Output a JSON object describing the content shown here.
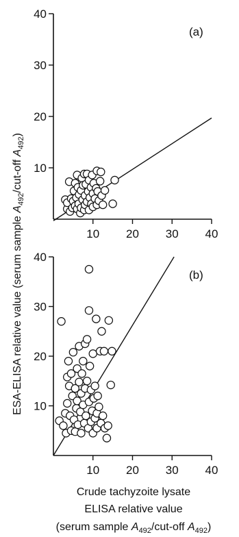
{
  "figure": {
    "ylabel_main": "ESA-ELISA relative value (serum sample ",
    "ylabel_var": "A",
    "ylabel_sub": "492",
    "ylabel_mid": "/cut-off ",
    "ylabel_var2": "A",
    "ylabel_sub2": "492",
    "ylabel_end": ")",
    "xlabel_line1": "Crude tachyzoite lysate",
    "xlabel_line2": "ELISA relative value",
    "xlabel_line3_pre": "(serum sample ",
    "xlabel_line3_var": "A",
    "xlabel_line3_sub": "492",
    "xlabel_line3_mid": "/cut-off ",
    "xlabel_line3_var2": "A",
    "xlabel_line3_sub2": "492",
    "xlabel_line3_end": ")"
  },
  "chart_data": [
    {
      "type": "scatter",
      "panel_label": "(a)",
      "xlim": [
        0,
        40
      ],
      "ylim": [
        0,
        40
      ],
      "xticks": [
        10,
        20,
        30,
        40
      ],
      "yticks": [
        10,
        20,
        30,
        40
      ],
      "xtick_labels": [
        "10",
        "20",
        "30",
        "40"
      ],
      "ytick_labels": [
        "10",
        "20",
        "30",
        "40"
      ],
      "line": {
        "x": [
          0,
          40
        ],
        "y": [
          -0.3,
          19.7
        ]
      },
      "points": [
        [
          3.0,
          3.8
        ],
        [
          3.5,
          2.0
        ],
        [
          3.5,
          3.2
        ],
        [
          4.0,
          7.3
        ],
        [
          4.2,
          1.5
        ],
        [
          4.5,
          4.0
        ],
        [
          4.8,
          2.2
        ],
        [
          5.0,
          3.5
        ],
        [
          5.2,
          5.5
        ],
        [
          5.5,
          2.6
        ],
        [
          5.5,
          7.0
        ],
        [
          5.8,
          4.2
        ],
        [
          6.0,
          8.6
        ],
        [
          6.0,
          2.0
        ],
        [
          6.2,
          6.2
        ],
        [
          6.4,
          3.0
        ],
        [
          6.5,
          4.8
        ],
        [
          6.8,
          1.2
        ],
        [
          7.0,
          5.6
        ],
        [
          7.0,
          2.2
        ],
        [
          7.2,
          8.0
        ],
        [
          7.4,
          3.8
        ],
        [
          7.5,
          6.6
        ],
        [
          7.8,
          1.8
        ],
        [
          7.8,
          8.8
        ],
        [
          8.0,
          4.6
        ],
        [
          8.0,
          2.8
        ],
        [
          8.2,
          6.8
        ],
        [
          8.5,
          8.8
        ],
        [
          8.5,
          3.4
        ],
        [
          8.8,
          5.4
        ],
        [
          9.0,
          7.6
        ],
        [
          9.0,
          1.8
        ],
        [
          9.2,
          4.2
        ],
        [
          9.5,
          6.2
        ],
        [
          9.6,
          3.0
        ],
        [
          9.8,
          8.6
        ],
        [
          10.0,
          5.0
        ],
        [
          10.0,
          2.4
        ],
        [
          10.2,
          7.0
        ],
        [
          10.5,
          4.0
        ],
        [
          10.8,
          6.0
        ],
        [
          11.0,
          9.4
        ],
        [
          11.0,
          2.8
        ],
        [
          11.2,
          5.4
        ],
        [
          11.5,
          3.6
        ],
        [
          11.8,
          7.4
        ],
        [
          12.0,
          9.2
        ],
        [
          12.2,
          4.6
        ],
        [
          12.5,
          2.8
        ],
        [
          13.0,
          5.6
        ],
        [
          15.0,
          3.0
        ],
        [
          15.5,
          7.6
        ]
      ]
    },
    {
      "type": "scatter",
      "panel_label": "(b)",
      "xlim": [
        0,
        40
      ],
      "ylim": [
        0,
        40
      ],
      "xticks": [
        10,
        20,
        30,
        40
      ],
      "yticks": [
        10,
        20,
        30,
        40
      ],
      "xtick_labels": [
        "10",
        "20",
        "30",
        "40"
      ],
      "ytick_labels": [
        "10",
        "20",
        "30",
        "40"
      ],
      "line": {
        "x": [
          0,
          30.5
        ],
        "y": [
          0,
          40
        ]
      },
      "points": [
        [
          1.5,
          7.0
        ],
        [
          2.0,
          27.0
        ],
        [
          2.5,
          6.0
        ],
        [
          3.0,
          8.5
        ],
        [
          3.2,
          4.5
        ],
        [
          3.5,
          10.5
        ],
        [
          3.5,
          15.8
        ],
        [
          3.8,
          19.0
        ],
        [
          4.0,
          14.0
        ],
        [
          4.2,
          8.0
        ],
        [
          4.5,
          5.0
        ],
        [
          4.5,
          16.5
        ],
        [
          4.8,
          12.0
        ],
        [
          5.0,
          20.8
        ],
        [
          5.2,
          7.2
        ],
        [
          5.5,
          4.8
        ],
        [
          5.5,
          13.5
        ],
        [
          5.8,
          9.5
        ],
        [
          6.0,
          17.5
        ],
        [
          6.0,
          11.0
        ],
        [
          6.2,
          6.2
        ],
        [
          6.5,
          14.8
        ],
        [
          6.5,
          22.0
        ],
        [
          6.8,
          8.8
        ],
        [
          7.0,
          12.5
        ],
        [
          7.0,
          4.5
        ],
        [
          7.2,
          16.5
        ],
        [
          7.5,
          10.2
        ],
        [
          7.5,
          19.0
        ],
        [
          7.8,
          6.5
        ],
        [
          8.0,
          13.5
        ],
        [
          8.0,
          22.5
        ],
        [
          8.2,
          8.0
        ],
        [
          8.5,
          15.0
        ],
        [
          8.5,
          23.4
        ],
        [
          8.8,
          5.5
        ],
        [
          9.0,
          37.5
        ],
        [
          9.0,
          29.2
        ],
        [
          9.0,
          10.8
        ],
        [
          9.2,
          18.0
        ],
        [
          9.5,
          6.8
        ],
        [
          9.5,
          13.2
        ],
        [
          9.8,
          9.0
        ],
        [
          10.0,
          20.5
        ],
        [
          10.0,
          4.5
        ],
        [
          10.2,
          11.5
        ],
        [
          10.5,
          7.5
        ],
        [
          10.5,
          14.0
        ],
        [
          10.8,
          27.5
        ],
        [
          11.0,
          8.5
        ],
        [
          11.0,
          5.5
        ],
        [
          11.2,
          12.0
        ],
        [
          11.5,
          9.8
        ],
        [
          11.8,
          21.0
        ],
        [
          12.0,
          6.5
        ],
        [
          12.2,
          25.0
        ],
        [
          12.5,
          8.0
        ],
        [
          12.8,
          21.0
        ],
        [
          13.0,
          5.5
        ],
        [
          13.5,
          3.5
        ],
        [
          13.8,
          6.0
        ],
        [
          14.0,
          27.2
        ],
        [
          14.5,
          14.2
        ],
        [
          14.8,
          21.0
        ]
      ]
    }
  ]
}
